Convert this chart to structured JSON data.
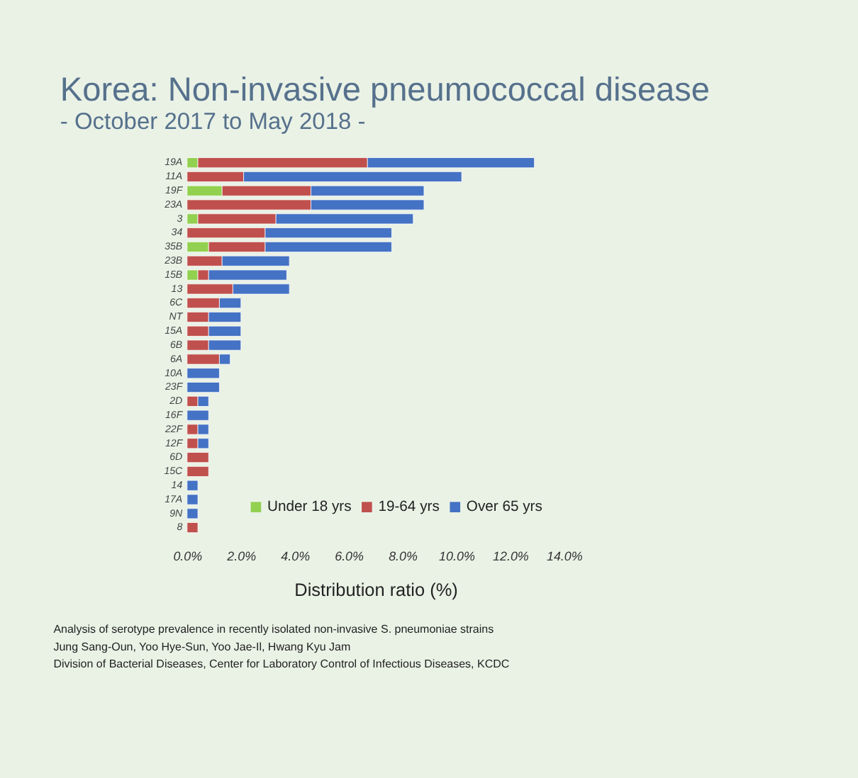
{
  "chart_data": {
    "type": "bar",
    "orientation": "horizontal",
    "stacked": true,
    "title": "Korea: Non-invasive pneumococcal disease",
    "subtitle": "- October 2017 to May 2018 -",
    "xlabel": "Distribution ratio (%)",
    "categories": [
      "19A",
      "11A",
      "19F",
      "23A",
      "3",
      "34",
      "35B",
      "23B",
      "15B",
      "13",
      "6C",
      "NT",
      "15A",
      "6B",
      "6A",
      "10A",
      "23F",
      "2D",
      "16F",
      "22F",
      "12F",
      "6D",
      "15C",
      "14",
      "17A",
      "9N",
      "8"
    ],
    "series": [
      {
        "name": "Under 18 yrs",
        "color": "#92d050",
        "values": [
          0.4,
          null,
          1.3,
          null,
          0.4,
          null,
          0.8,
          null,
          0.4,
          null,
          null,
          null,
          null,
          null,
          null,
          null,
          null,
          null,
          null,
          null,
          null,
          null,
          null,
          null,
          null,
          null,
          null
        ]
      },
      {
        "name": "19-64 yrs",
        "color": "#c0504d",
        "values": [
          6.3,
          2.1,
          3.3,
          4.6,
          2.9,
          2.9,
          2.1,
          1.3,
          0.4,
          1.7,
          1.2,
          0.8,
          0.8,
          0.8,
          1.2,
          null,
          null,
          0.4,
          null,
          0.4,
          0.4,
          0.8,
          0.8,
          null,
          null,
          null,
          0.4
        ]
      },
      {
        "name": "Over 65 yrs",
        "color": "#4472c4",
        "values": [
          6.2,
          8.1,
          4.2,
          4.2,
          5.1,
          4.7,
          4.7,
          2.5,
          2.9,
          2.1,
          0.8,
          1.2,
          1.2,
          1.2,
          0.4,
          1.2,
          1.2,
          0.4,
          0.8,
          0.4,
          0.4,
          null,
          null,
          0.4,
          0.4,
          0.4,
          null
        ]
      }
    ],
    "xlim": [
      0,
      14
    ],
    "xticks": [
      {
        "value": 0,
        "label": "0.0%"
      },
      {
        "value": 2,
        "label": "2.0%"
      },
      {
        "value": 4,
        "label": "4.0%"
      },
      {
        "value": 6,
        "label": "6.0%"
      },
      {
        "value": 8,
        "label": "8.0%"
      },
      {
        "value": 10,
        "label": "10.0%"
      },
      {
        "value": 12,
        "label": "12.0%"
      },
      {
        "value": 14,
        "label": "14.0%"
      }
    ],
    "legend": "bottom right",
    "annotations": [
      "Analysis of serotype prevalence in recently isolated non-invasive S. pneumoniae strains",
      "Jung Sang-Oun, Yoo Hye-Sun, Yoo Jae-Il, Hwang Kyu Jam",
      "Division of Bacterial Diseases, Center for Laboratory Control of Infectious Diseases, KCDC"
    ]
  }
}
